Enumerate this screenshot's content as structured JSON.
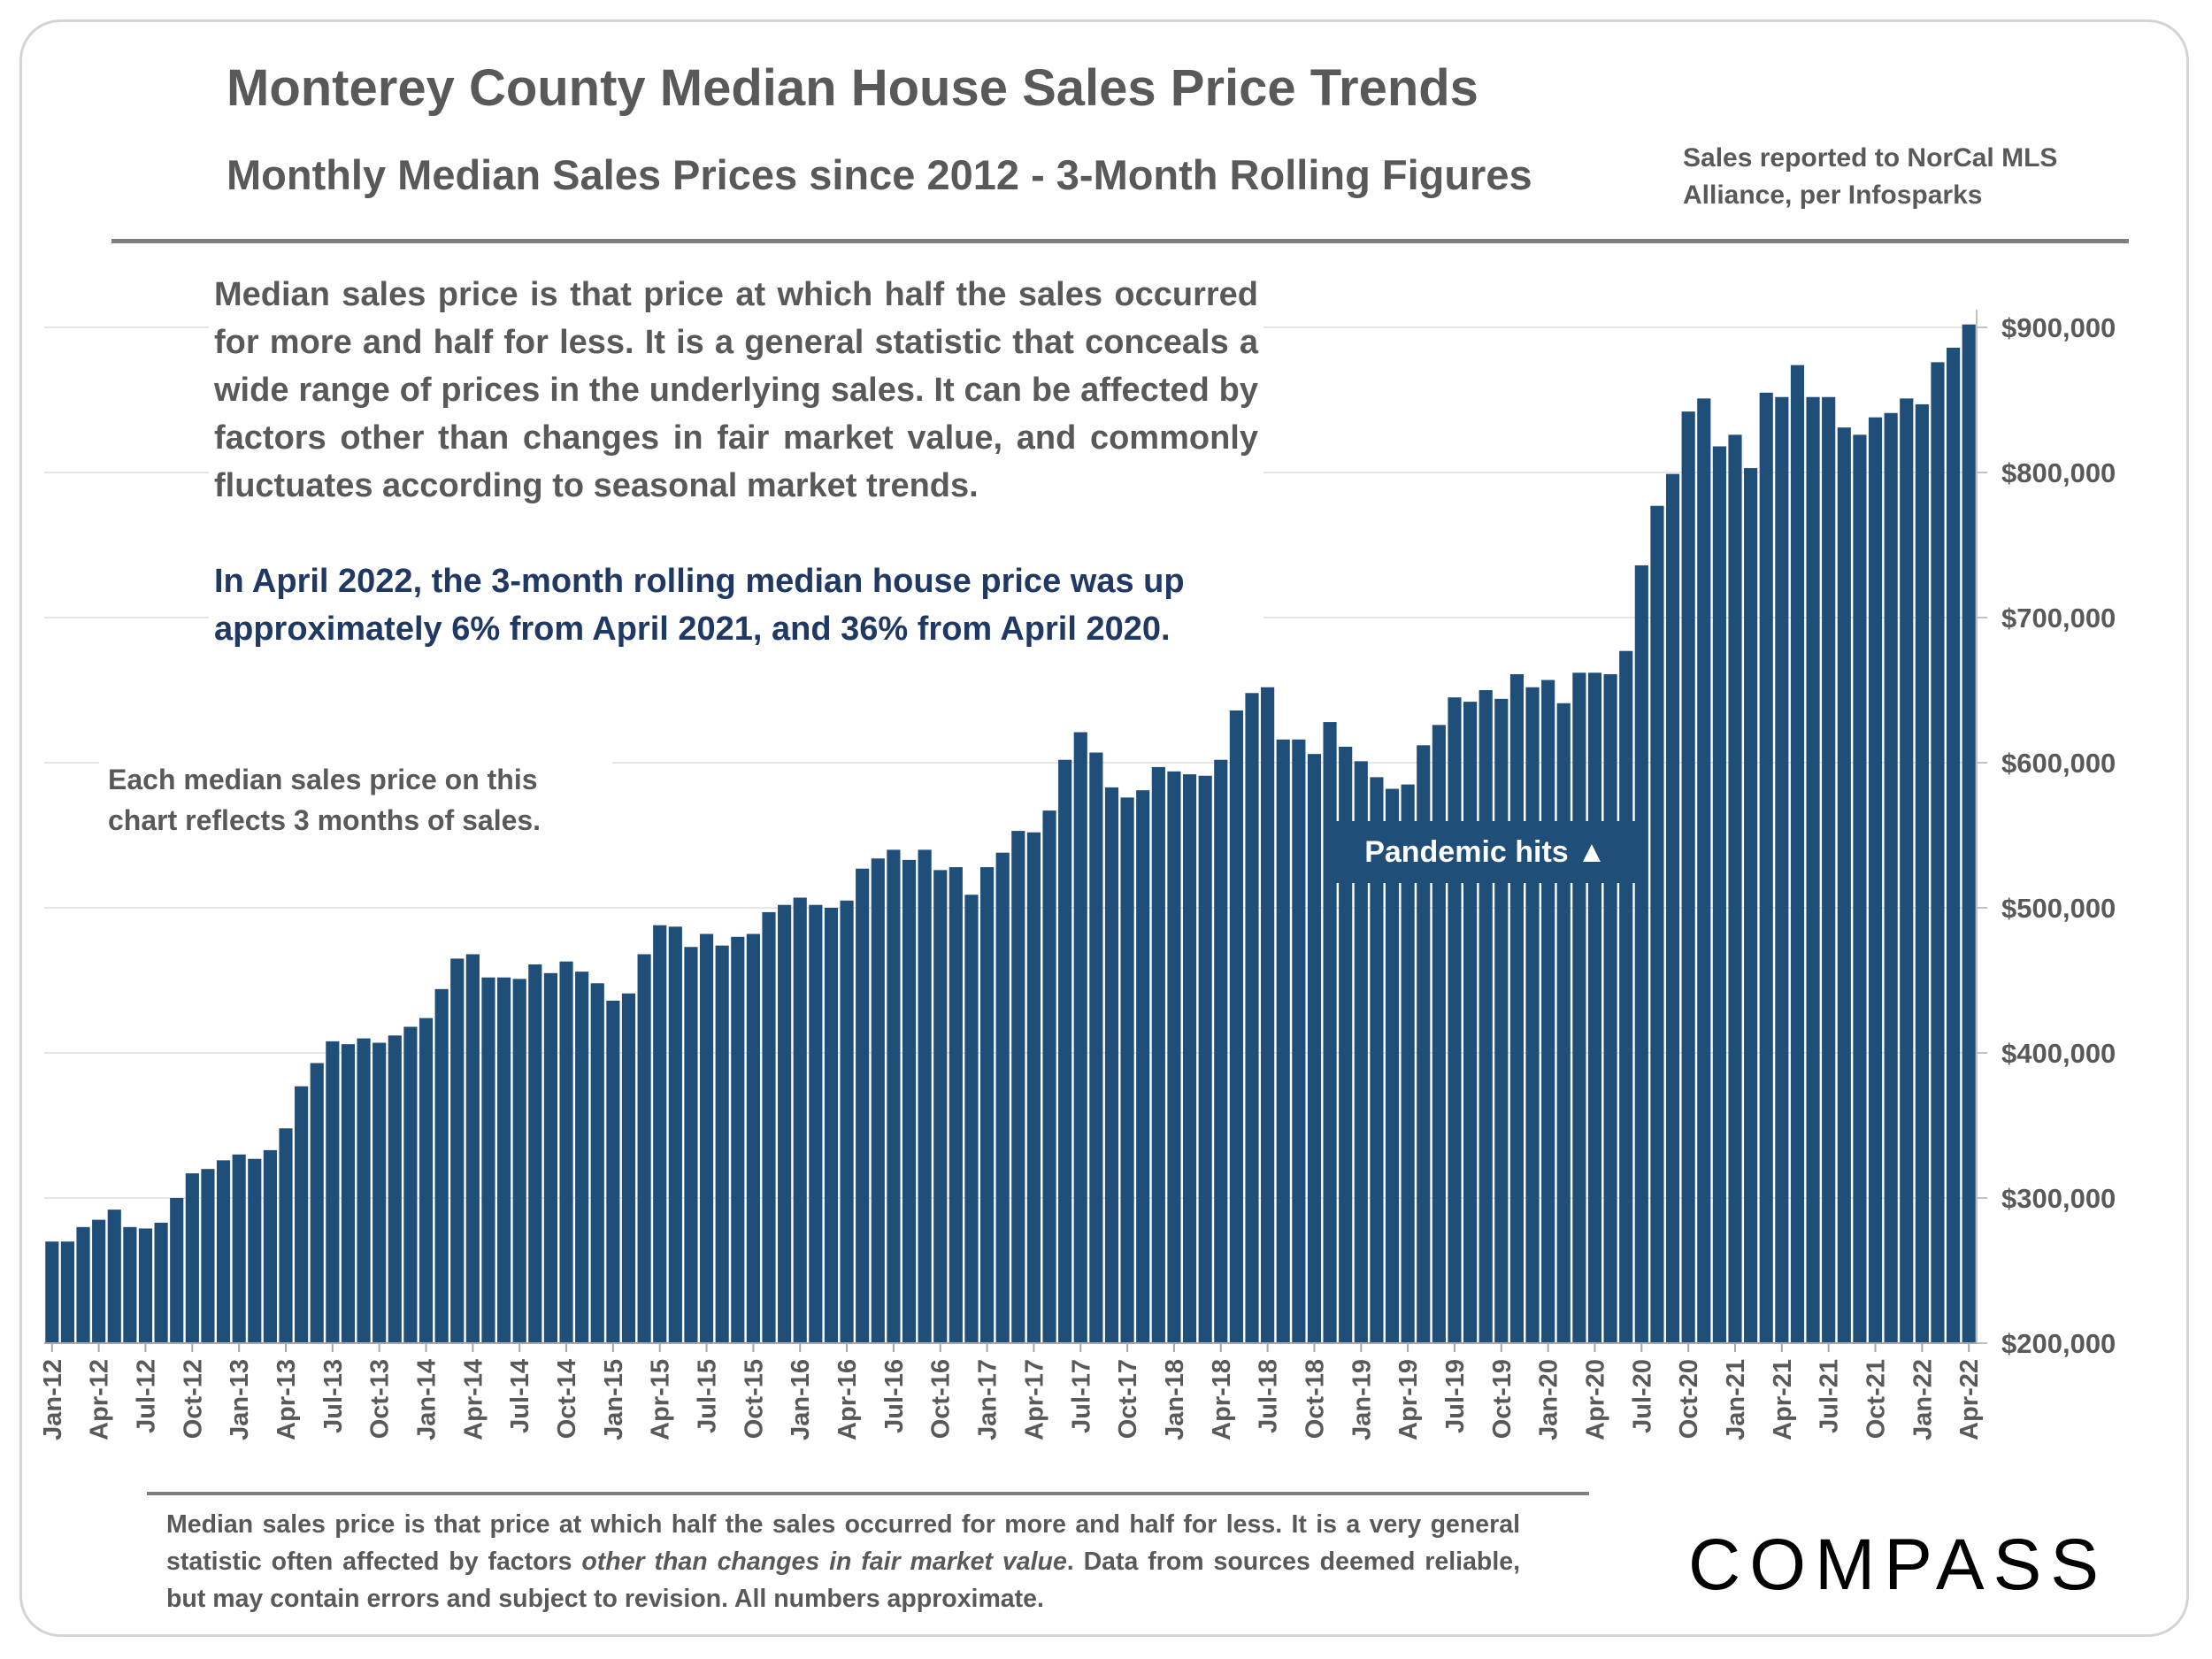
{
  "title": "Monterey County Median House Sales Price Trends",
  "subtitle": "Monthly Median Sales Prices since 2012 - 3-Month Rolling Figures",
  "source_note": "Sales reported to NorCal MLS Alliance, per Infosparks",
  "description": "Median sales price is that price at which half the sales occurred for more and half for less. It is a general statistic that conceals a wide range of prices in the underlying sales. It can be affected by factors other than changes in fair market value, and commonly fluctuates according to seasonal market trends.",
  "highlight": "In April 2022, the 3-month rolling median house price was up approximately 6% from April 2021, and 36% from April 2020.",
  "left_note": "Each median sales price on this chart reflects 3 months of sales.",
  "pandemic_label": "Pandemic hits",
  "pandemic_icon": "triangle-up",
  "footer_part1": "Median sales price is that price at which half the sales occurred for more and half for less. It is a very general statistic often affected by factors ",
  "footer_italic": "other than changes in fair market value",
  "footer_part2": ". Data from sources deemed reliable, but may contain errors and subject to revision. All numbers approximate.",
  "brand": "COMPASS",
  "colors": {
    "bar": "#1f4e79",
    "text": "#595959",
    "highlight": "#1f3864",
    "rule": "#7f7f7f",
    "grid": "#e6e6e6"
  },
  "chart_data": {
    "type": "bar",
    "ylabel_position": "right",
    "ylim": [
      200000,
      900000
    ],
    "yticks": [
      200000,
      300000,
      400000,
      500000,
      600000,
      700000,
      800000,
      900000
    ],
    "ytick_labels": [
      "$200,000",
      "$300,000",
      "$400,000",
      "$500,000",
      "$600,000",
      "$700,000",
      "$800,000",
      "$900,000"
    ],
    "grid": true,
    "categories": [
      "Jan-12",
      "Feb-12",
      "Mar-12",
      "Apr-12",
      "May-12",
      "Jun-12",
      "Jul-12",
      "Aug-12",
      "Sep-12",
      "Oct-12",
      "Nov-12",
      "Dec-12",
      "Jan-13",
      "Feb-13",
      "Mar-13",
      "Apr-13",
      "May-13",
      "Jun-13",
      "Jul-13",
      "Aug-13",
      "Sep-13",
      "Oct-13",
      "Nov-13",
      "Dec-13",
      "Jan-14",
      "Feb-14",
      "Mar-14",
      "Apr-14",
      "May-14",
      "Jun-14",
      "Jul-14",
      "Aug-14",
      "Sep-14",
      "Oct-14",
      "Nov-14",
      "Dec-14",
      "Jan-15",
      "Feb-15",
      "Mar-15",
      "Apr-15",
      "May-15",
      "Jun-15",
      "Jul-15",
      "Aug-15",
      "Sep-15",
      "Oct-15",
      "Nov-15",
      "Dec-15",
      "Jan-16",
      "Feb-16",
      "Mar-16",
      "Apr-16",
      "May-16",
      "Jun-16",
      "Jul-16",
      "Aug-16",
      "Sep-16",
      "Oct-16",
      "Nov-16",
      "Dec-16",
      "Jan-17",
      "Feb-17",
      "Mar-17",
      "Apr-17",
      "May-17",
      "Jun-17",
      "Jul-17",
      "Aug-17",
      "Sep-17",
      "Oct-17",
      "Nov-17",
      "Dec-17",
      "Jan-18",
      "Feb-18",
      "Mar-18",
      "Apr-18",
      "May-18",
      "Jun-18",
      "Jul-18",
      "Aug-18",
      "Sep-18",
      "Oct-18",
      "Nov-18",
      "Dec-18",
      "Jan-19",
      "Feb-19",
      "Mar-19",
      "Apr-19",
      "May-19",
      "Jun-19",
      "Jul-19",
      "Aug-19",
      "Sep-19",
      "Oct-19",
      "Nov-19",
      "Dec-19",
      "Jan-20",
      "Feb-20",
      "Mar-20",
      "Apr-20",
      "May-20",
      "Jun-20",
      "Jul-20",
      "Aug-20",
      "Sep-20",
      "Oct-20",
      "Nov-20",
      "Dec-20",
      "Jan-21",
      "Feb-21",
      "Mar-21",
      "Apr-21",
      "May-21",
      "Jun-21",
      "Jul-21",
      "Aug-21",
      "Sep-21",
      "Oct-21",
      "Nov-21",
      "Dec-21",
      "Jan-22",
      "Feb-22",
      "Mar-22",
      "Apr-22"
    ],
    "xtick_labels": [
      "Jan-12",
      "Apr-12",
      "Jul-12",
      "Oct-12",
      "Jan-13",
      "Apr-13",
      "Jul-13",
      "Oct-13",
      "Jan-14",
      "Apr-14",
      "Jul-14",
      "Oct-14",
      "Jan-15",
      "Apr-15",
      "Jul-15",
      "Oct-15",
      "Jan-16",
      "Apr-16",
      "Jul-16",
      "Oct-16",
      "Jan-17",
      "Apr-17",
      "Jul-17",
      "Oct-17",
      "Jan-18",
      "Apr-18",
      "Jul-18",
      "Oct-18",
      "Jan-19",
      "Apr-19",
      "Jul-19",
      "Oct-19",
      "Jan-20",
      "Apr-20",
      "Jul-20",
      "Oct-20",
      "Jan-21",
      "Apr-21",
      "Jul-21",
      "Oct-21",
      "Jan-22",
      "Apr-22"
    ],
    "values": [
      270000,
      270000,
      280000,
      285000,
      292000,
      280000,
      279000,
      283000,
      300000,
      317000,
      320000,
      326000,
      330000,
      327000,
      333000,
      348000,
      377000,
      393000,
      408000,
      406000,
      410000,
      407000,
      412000,
      418000,
      424000,
      444000,
      465000,
      468000,
      452000,
      452000,
      451000,
      461000,
      455000,
      463000,
      456000,
      448000,
      436000,
      441000,
      468000,
      488000,
      487000,
      473000,
      482000,
      474000,
      480000,
      482000,
      497000,
      502000,
      507000,
      502000,
      500000,
      505000,
      527000,
      534000,
      540000,
      533000,
      540000,
      526000,
      528000,
      509000,
      528000,
      538000,
      553000,
      552000,
      567000,
      602000,
      621000,
      607000,
      583000,
      576000,
      581000,
      597000,
      594000,
      592000,
      591000,
      602000,
      636000,
      648000,
      652000,
      616000,
      616000,
      606000,
      628000,
      611000,
      601000,
      590000,
      582000,
      585000,
      612000,
      626000,
      645000,
      642000,
      650000,
      644000,
      661000,
      652000,
      657000,
      641000,
      662000,
      662000,
      661000,
      677000,
      736000,
      777000,
      799000,
      842000,
      851000,
      818000,
      826000,
      803000,
      855000,
      852000,
      874000,
      852000,
      852000,
      831000,
      826000,
      838000,
      841000,
      851000,
      847000,
      876000,
      886000,
      902000
    ]
  }
}
